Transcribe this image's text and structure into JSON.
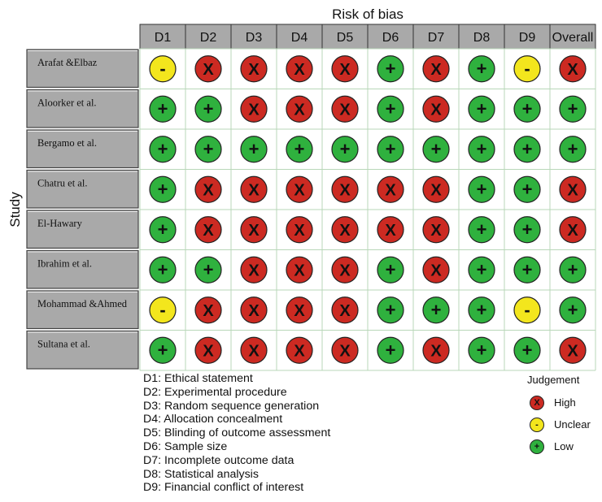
{
  "chart_data": {
    "type": "table",
    "title": "Risk of bias",
    "ylabel": "Study",
    "domains": [
      "D1",
      "D2",
      "D3",
      "D4",
      "D5",
      "D6",
      "D7",
      "D8",
      "D9",
      "Overall"
    ],
    "studies": [
      {
        "name": "Arafat &Elbaz",
        "judgements": [
          "unclear",
          "high",
          "high",
          "high",
          "high",
          "low",
          "high",
          "low",
          "unclear",
          "high"
        ]
      },
      {
        "name": "Aloorker et al.",
        "judgements": [
          "low",
          "low",
          "high",
          "high",
          "high",
          "low",
          "high",
          "low",
          "low",
          "low"
        ]
      },
      {
        "name": "Bergamo et al.",
        "judgements": [
          "low",
          "low",
          "low",
          "low",
          "low",
          "low",
          "low",
          "low",
          "low",
          "low"
        ]
      },
      {
        "name": "Chatru et al.",
        "judgements": [
          "low",
          "high",
          "high",
          "high",
          "high",
          "high",
          "high",
          "low",
          "low",
          "high"
        ]
      },
      {
        "name": "El-Hawary",
        "judgements": [
          "low",
          "high",
          "high",
          "high",
          "high",
          "high",
          "high",
          "low",
          "low",
          "high"
        ]
      },
      {
        "name": "Ibrahim et al.",
        "judgements": [
          "low",
          "low",
          "high",
          "high",
          "high",
          "low",
          "high",
          "low",
          "low",
          "low"
        ]
      },
      {
        "name": "Mohammad &Ahmed",
        "judgements": [
          "unclear",
          "high",
          "high",
          "high",
          "high",
          "low",
          "low",
          "low",
          "unclear",
          "low"
        ]
      },
      {
        "name": "Sultana et al.",
        "judgements": [
          "low",
          "high",
          "high",
          "high",
          "high",
          "low",
          "high",
          "low",
          "low",
          "high"
        ]
      }
    ],
    "domain_descriptions": [
      "D1: Ethical statement",
      "D2: Experimental procedure",
      "D3: Random sequence generation",
      "D4: Allocation concealment",
      "D5: Blinding of outcome assessment",
      "D6: Sample size",
      "D7: Incomplete outcome data",
      "D8: Statistical analysis",
      "D9: Financial conflict of interest"
    ],
    "legend": {
      "title": "Judgement",
      "placement": "bottom-right",
      "items": [
        {
          "key": "high",
          "label": "High",
          "symbol": "X",
          "color": "#cc2a22"
        },
        {
          "key": "unclear",
          "label": "Unclear",
          "symbol": "-",
          "color": "#f3e61d"
        },
        {
          "key": "low",
          "label": "Low",
          "symbol": "+",
          "color": "#2fb13e"
        }
      ]
    }
  },
  "colors": {
    "header_fill": "#a9a9a9",
    "study_fill": "#a9a9a9",
    "cell_border": "#555555",
    "grid_line": "#b9d7b9"
  }
}
